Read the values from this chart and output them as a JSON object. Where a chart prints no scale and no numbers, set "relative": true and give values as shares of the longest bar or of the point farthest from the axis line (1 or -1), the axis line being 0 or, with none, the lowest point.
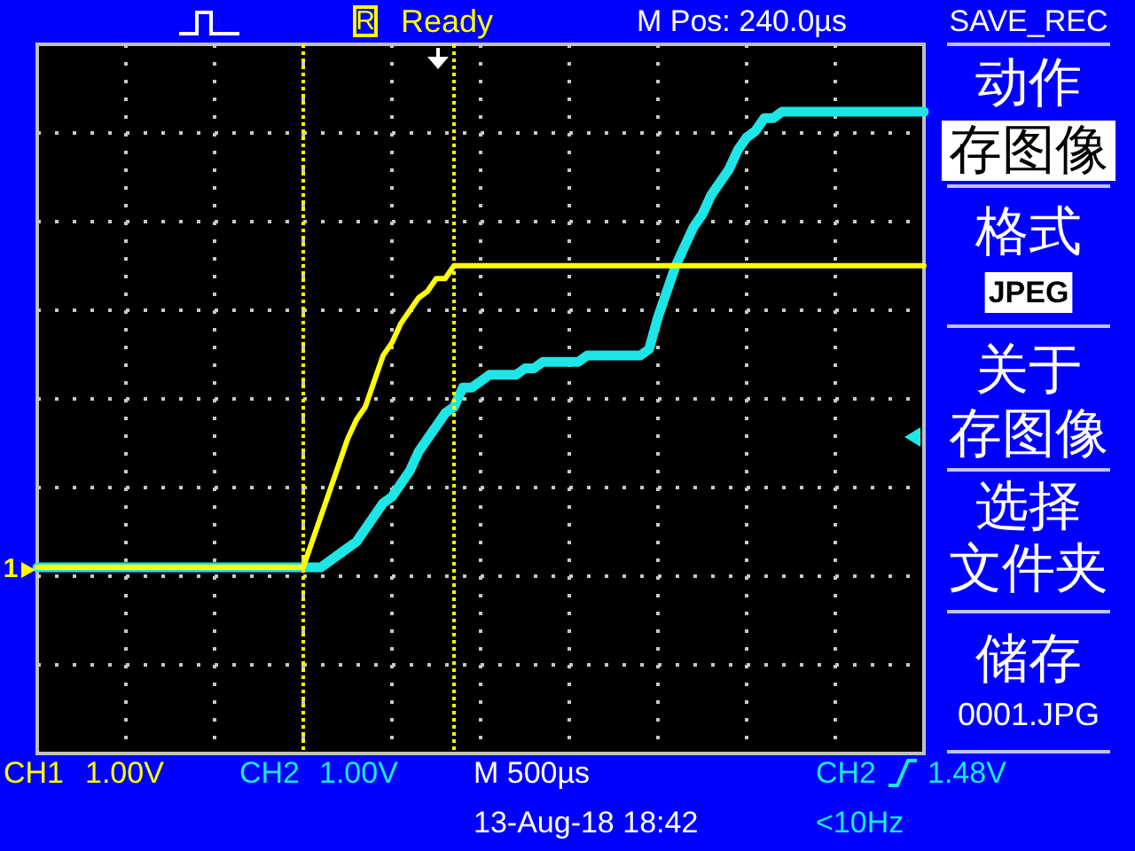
{
  "chart_data": {
    "type": "line",
    "relative": true,
    "grid": true,
    "categories": [
      null,
      null,
      null,
      null,
      null,
      null,
      null,
      null,
      null,
      null,
      null,
      null,
      null,
      null,
      null,
      null,
      null,
      null,
      null,
      null,
      null,
      null,
      null,
      null,
      null,
      null,
      null,
      null,
      null,
      null,
      null,
      null,
      null,
      null,
      null,
      null,
      null,
      null,
      null,
      null,
      null,
      null,
      null,
      null,
      null,
      null,
      null,
      null,
      null,
      null,
      null,
      null,
      null,
      null,
      null,
      null,
      null,
      null,
      null,
      null,
      null,
      null,
      null,
      null,
      null,
      null,
      null,
      null,
      null,
      null,
      null,
      null,
      null,
      null,
      null,
      null,
      null,
      null,
      null,
      null,
      null,
      null,
      null,
      null,
      null,
      null,
      null,
      null,
      null,
      null,
      null,
      null,
      null,
      null,
      null,
      null,
      null,
      null,
      null,
      null,
      null
    ],
    "series": [
      {
        "name": "CH1",
        "color": "#ffff00",
        "values": [
          0.29,
          0.29,
          0.29,
          0.29,
          0.29,
          0.29,
          0.29,
          0.29,
          0.29,
          0.29,
          0.29,
          0.29,
          0.29,
          0.29,
          0.29,
          0.29,
          0.29,
          0.29,
          0.29,
          0.29,
          0.29,
          0.29,
          0.29,
          0.29,
          0.29,
          0.29,
          0.29,
          0.29,
          0.29,
          0.29,
          0.29,
          0.33,
          0.37,
          0.41,
          0.45,
          0.49,
          0.52,
          0.54,
          0.58,
          0.62,
          0.64,
          0.67,
          0.69,
          0.71,
          0.72,
          0.74,
          0.74,
          0.76,
          0.76,
          0.76,
          0.76,
          0.76,
          0.76,
          0.76,
          0.76,
          0.76,
          0.76,
          0.76,
          0.76,
          0.76,
          0.76,
          0.76,
          0.76,
          0.76,
          0.76,
          0.76,
          0.76,
          0.76,
          0.76,
          0.76,
          0.76,
          0.76,
          0.76,
          0.76,
          0.76,
          0.76,
          0.76,
          0.76,
          0.76,
          0.76,
          0.76,
          0.76,
          0.76,
          0.76,
          0.76,
          0.76,
          0.76,
          0.76,
          0.76,
          0.76,
          0.76,
          0.76,
          0.76,
          0.76,
          0.76,
          0.76,
          0.76,
          0.76,
          0.76,
          0.76,
          0.76
        ]
      },
      {
        "name": "CH2",
        "color": "#1ee6e6",
        "values": [
          0.29,
          0.29,
          0.29,
          0.29,
          0.29,
          0.29,
          0.29,
          0.29,
          0.29,
          0.29,
          0.29,
          0.29,
          0.29,
          0.29,
          0.29,
          0.29,
          0.29,
          0.29,
          0.29,
          0.29,
          0.29,
          0.29,
          0.29,
          0.29,
          0.29,
          0.29,
          0.29,
          0.29,
          0.29,
          0.29,
          0.29,
          0.29,
          0.29,
          0.3,
          0.31,
          0.32,
          0.33,
          0.35,
          0.37,
          0.39,
          0.4,
          0.42,
          0.44,
          0.47,
          0.49,
          0.51,
          0.53,
          0.54,
          0.57,
          0.57,
          0.58,
          0.59,
          0.59,
          0.59,
          0.59,
          0.6,
          0.6,
          0.61,
          0.61,
          0.61,
          0.61,
          0.61,
          0.62,
          0.62,
          0.62,
          0.62,
          0.62,
          0.62,
          0.62,
          0.63,
          0.68,
          0.72,
          0.76,
          0.79,
          0.82,
          0.84,
          0.87,
          0.89,
          0.91,
          0.94,
          0.96,
          0.97,
          0.99,
          0.99,
          1,
          1,
          1,
          1,
          1,
          1,
          1,
          1,
          1,
          1,
          1,
          1,
          1,
          1,
          1,
          1,
          1
        ]
      }
    ],
    "annotations": [
      "R",
      "Ready",
      "M Pos: 240.0µs",
      "SAVE_REC",
      "动作",
      "存图像",
      "格式",
      "JPEG",
      "关于",
      "存图像",
      "选择",
      "文件夹",
      "储存",
      "0001.JPG",
      "1.00V",
      "1.00V",
      "M 500µs",
      "CH2",
      "1.48V",
      "13-Aug-18 18:42",
      "<10Hz",
      "1"
    ]
  }
}
